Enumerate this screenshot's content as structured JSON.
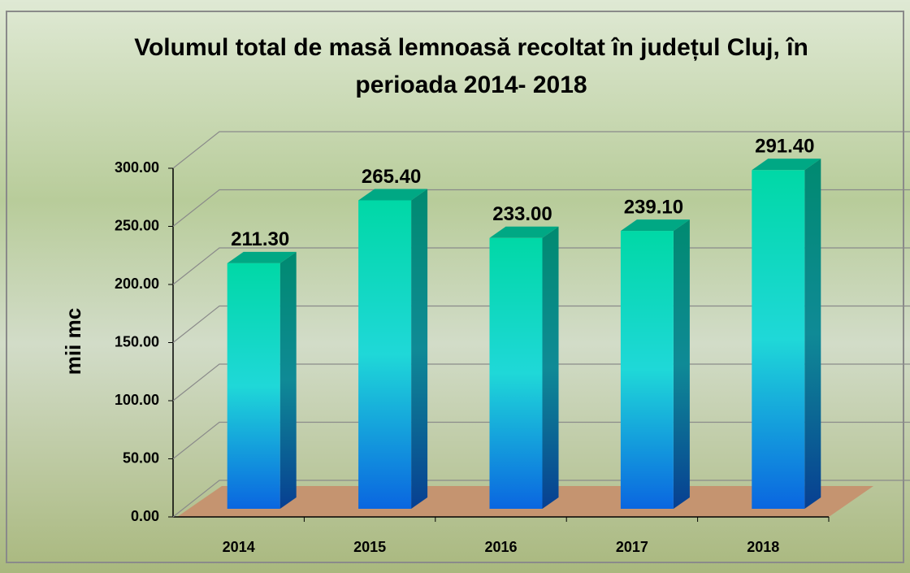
{
  "chart_data": {
    "type": "bar3d",
    "title": "Volumul total de masă lemnoasă recoltat în județul Cluj, în perioada 2014- 2018",
    "y_label": "mii mc",
    "categories": [
      "2014",
      "2015",
      "2016",
      "2017",
      "2018"
    ],
    "values": [
      211.3,
      265.4,
      233,
      239.1,
      291.4
    ],
    "value_labels": [
      "211.30",
      "265.40",
      "233.00",
      "239.10",
      "291.40"
    ],
    "color": "#1fd8d8",
    "ylim": [
      0,
      300
    ],
    "yticks": [
      {
        "value": 0,
        "label": "0.00"
      },
      {
        "value": 50,
        "label": "50.00"
      },
      {
        "value": 100,
        "label": "100.00"
      },
      {
        "value": 150,
        "label": "150.00"
      },
      {
        "value": 200,
        "label": "200.00"
      },
      {
        "value": 250,
        "label": "250.00"
      },
      {
        "value": 300,
        "label": "300.00"
      }
    ],
    "grid": true
  }
}
